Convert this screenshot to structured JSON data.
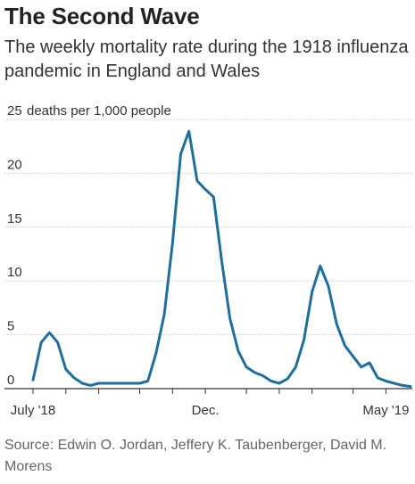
{
  "header": {
    "title": "The Second Wave",
    "subtitle": "The weekly mortality rate during the 1918 influenza pandemic in England and Wales"
  },
  "footer": {
    "source": "Source: Edwin O. Jordan, Jeffery K. Taubenberger, David M. Morens"
  },
  "colors": {
    "line": "#1f6e9c",
    "grid": "#cccccc",
    "axis": "#333333",
    "text": "#333333"
  },
  "chart_data": {
    "type": "line",
    "title": "The Second Wave",
    "subtitle": "The weekly mortality rate during the 1918 influenza pandemic in England and Wales",
    "ylabel": "",
    "y_unit_label": "deaths per 1,000 people",
    "ylim": [
      0,
      25
    ],
    "yticks": [
      0,
      5,
      10,
      15,
      20,
      25
    ],
    "ytick_labels": [
      "0",
      "5",
      "10",
      "15",
      "20",
      "25"
    ],
    "x_unit": "week",
    "xlim": [
      0,
      46
    ],
    "x_tick_labels": [
      {
        "x": 0,
        "label": "July '18"
      },
      {
        "x": 21,
        "label": "Dec."
      },
      {
        "x": 43,
        "label": "May '19"
      }
    ],
    "x_tick_weeks": [
      0,
      4,
      8,
      13,
      17,
      21,
      26,
      30,
      34,
      39,
      43
    ],
    "grid": true,
    "series": [
      {
        "name": "",
        "x": [
          0,
          1,
          2,
          3,
          4,
          5,
          6,
          7,
          8,
          9,
          10,
          11,
          12,
          13,
          14,
          15,
          16,
          17,
          18,
          19,
          20,
          21,
          22,
          23,
          24,
          25,
          26,
          27,
          28,
          29,
          30,
          31,
          32,
          33,
          34,
          35,
          36,
          37,
          38,
          39,
          40,
          41,
          42,
          43,
          44,
          45,
          46
        ],
        "values": [
          0.8,
          4.3,
          5.2,
          4.3,
          1.8,
          1.0,
          0.5,
          0.3,
          0.5,
          0.5,
          0.5,
          0.5,
          0.5,
          0.5,
          0.7,
          3.3,
          6.9,
          13.5,
          21.8,
          23.9,
          19.3,
          18.5,
          17.8,
          11.8,
          6.5,
          3.5,
          2.0,
          1.5,
          1.2,
          0.7,
          0.5,
          0.9,
          2.0,
          4.5,
          9.0,
          11.4,
          9.5,
          6.0,
          4.0,
          3.0,
          2.0,
          2.4,
          1.0,
          0.7,
          0.5,
          0.3,
          0.2
        ]
      }
    ]
  }
}
